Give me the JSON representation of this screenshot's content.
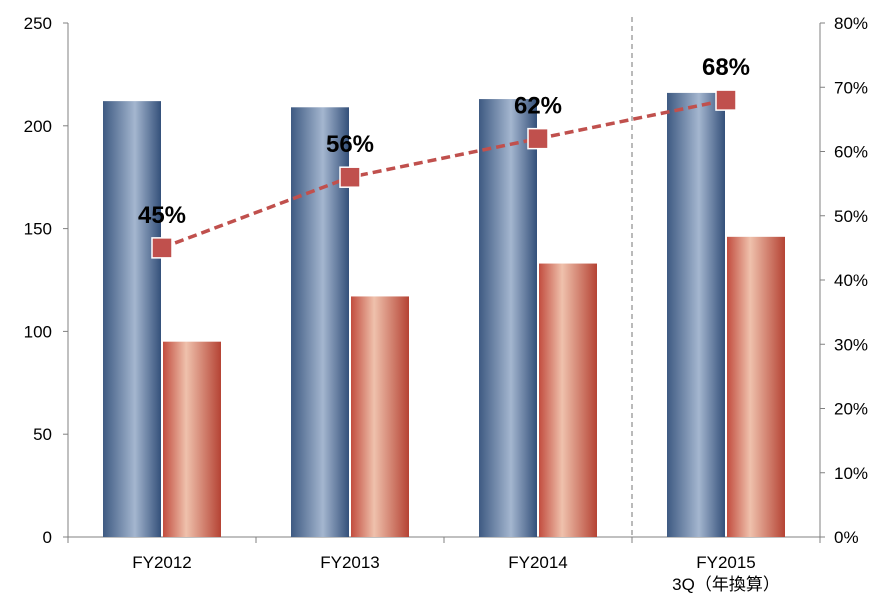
{
  "chart_data": {
    "type": "bar",
    "categories": [
      "FY2012",
      "FY2013",
      "FY2014",
      "FY2015"
    ],
    "category_sublabels": [
      "",
      "",
      "",
      "3Q（年換算）"
    ],
    "series": [
      {
        "type": "bar",
        "axis": "left",
        "values": [
          212,
          209,
          213,
          216
        ],
        "color": "#4a6690"
      },
      {
        "type": "bar",
        "axis": "left",
        "values": [
          95,
          117,
          133,
          146
        ],
        "color": "#c0504d"
      },
      {
        "type": "line",
        "axis": "right",
        "values": [
          45,
          56,
          62,
          68
        ],
        "labels": [
          "45%",
          "56%",
          "62%",
          "68%"
        ],
        "color": "#c0504d"
      }
    ],
    "ylim_left": [
      0,
      250
    ],
    "yticks_left": [
      "0",
      "50",
      "100",
      "150",
      "200",
      "250"
    ],
    "ylim_right": [
      0,
      80
    ],
    "yticks_right": [
      "0%",
      "10%",
      "20%",
      "30%",
      "40%",
      "50%",
      "60%",
      "70%",
      "80%"
    ],
    "divider": "dashed vertical line between FY2014 and FY2015",
    "grid": false,
    "legend": "none"
  }
}
